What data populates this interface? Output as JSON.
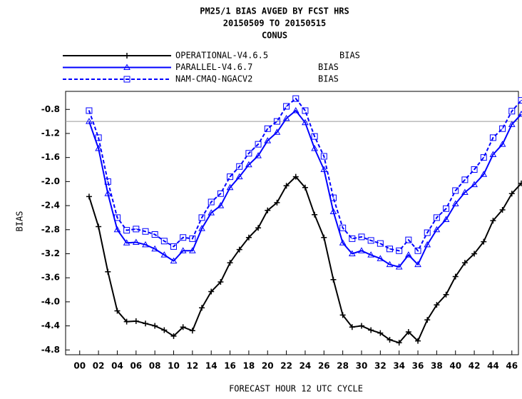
{
  "chart_data": {
    "type": "line",
    "title": [
      "PM25/1 BIAS  AVGED BY FCST HRS",
      "20150509 TO 20150515",
      "CONUS"
    ],
    "xlabel": "FORECAST HOUR  12 UTC CYCLE",
    "ylabel": "BIAS",
    "legend_stat": "BIAS",
    "x": [
      1,
      2,
      3,
      4,
      5,
      6,
      7,
      8,
      9,
      10,
      11,
      12,
      13,
      14,
      15,
      16,
      17,
      18,
      19,
      20,
      21,
      22,
      23,
      24,
      25,
      26,
      27,
      28,
      29,
      30,
      31,
      32,
      33,
      34,
      35,
      36,
      37,
      38,
      39,
      40,
      41,
      42,
      43,
      44,
      45,
      46,
      47
    ],
    "series": [
      {
        "name": "OPERATIONAL-V4.6.5",
        "color": "#000000",
        "marker": "plus",
        "dash": false,
        "values": [
          -2.25,
          -2.75,
          -3.5,
          -4.15,
          -4.33,
          -4.32,
          -4.36,
          -4.4,
          -4.47,
          -4.57,
          -4.42,
          -4.48,
          -4.1,
          -3.83,
          -3.67,
          -3.35,
          -3.13,
          -2.93,
          -2.77,
          -2.48,
          -2.35,
          -2.07,
          -1.92,
          -2.1,
          -2.55,
          -2.93,
          -3.63,
          -4.22,
          -4.42,
          -4.4,
          -4.47,
          -4.52,
          -4.63,
          -4.68,
          -4.5,
          -4.65,
          -4.3,
          -4.05,
          -3.88,
          -3.58,
          -3.35,
          -3.2,
          -3.0,
          -2.65,
          -2.47,
          -2.2,
          -2.03
        ]
      },
      {
        "name": "PARALLEL-V4.6.7",
        "color": "#0000ff",
        "marker": "triangle",
        "dash": false,
        "values": [
          -1.0,
          -1.45,
          -2.2,
          -2.8,
          -3.02,
          -3.01,
          -3.05,
          -3.12,
          -3.22,
          -3.32,
          -3.15,
          -3.15,
          -2.78,
          -2.52,
          -2.4,
          -2.1,
          -1.92,
          -1.72,
          -1.57,
          -1.32,
          -1.18,
          -0.95,
          -0.82,
          -1.02,
          -1.45,
          -1.8,
          -2.5,
          -3.02,
          -3.2,
          -3.15,
          -3.22,
          -3.28,
          -3.38,
          -3.42,
          -3.22,
          -3.38,
          -3.05,
          -2.8,
          -2.63,
          -2.37,
          -2.18,
          -2.05,
          -1.88,
          -1.55,
          -1.38,
          -1.05,
          -0.88
        ]
      },
      {
        "name": "NAM-CMAQ-NGACV2",
        "color": "#0000ff",
        "marker": "square",
        "dash": true,
        "values": [
          -0.82,
          -1.27,
          -2.0,
          -2.6,
          -2.81,
          -2.79,
          -2.83,
          -2.88,
          -2.99,
          -3.08,
          -2.93,
          -2.95,
          -2.6,
          -2.34,
          -2.2,
          -1.92,
          -1.75,
          -1.53,
          -1.38,
          -1.12,
          -1.0,
          -0.75,
          -0.62,
          -0.82,
          -1.25,
          -1.58,
          -2.27,
          -2.77,
          -2.95,
          -2.92,
          -2.98,
          -3.03,
          -3.12,
          -3.15,
          -2.97,
          -3.15,
          -2.85,
          -2.6,
          -2.45,
          -2.15,
          -1.97,
          -1.8,
          -1.6,
          -1.27,
          -1.12,
          -0.83,
          -0.65
        ]
      }
    ],
    "hline": -1.0,
    "xlim": [
      -1.5,
      46.7
    ],
    "ylim": [
      -4.88,
      -0.5
    ],
    "xticks": [
      {
        "value": 0,
        "label": "00"
      },
      {
        "value": 2,
        "label": "02"
      },
      {
        "value": 4,
        "label": "04"
      },
      {
        "value": 6,
        "label": "06"
      },
      {
        "value": 8,
        "label": "08"
      },
      {
        "value": 10,
        "label": "10"
      },
      {
        "value": 12,
        "label": "12"
      },
      {
        "value": 14,
        "label": "14"
      },
      {
        "value": 16,
        "label": "16"
      },
      {
        "value": 18,
        "label": "18"
      },
      {
        "value": 20,
        "label": "20"
      },
      {
        "value": 22,
        "label": "22"
      },
      {
        "value": 24,
        "label": "24"
      },
      {
        "value": 26,
        "label": "26"
      },
      {
        "value": 28,
        "label": "28"
      },
      {
        "value": 30,
        "label": "30"
      },
      {
        "value": 32,
        "label": "32"
      },
      {
        "value": 34,
        "label": "34"
      },
      {
        "value": 36,
        "label": "36"
      },
      {
        "value": 38,
        "label": "38"
      },
      {
        "value": 40,
        "label": "40"
      },
      {
        "value": 42,
        "label": "42"
      },
      {
        "value": 44,
        "label": "44"
      },
      {
        "value": 46,
        "label": "46"
      }
    ],
    "yticks": [
      -0.8,
      -1.2,
      -1.6,
      {
        "value": -2.0,
        "label": "-2.0"
      },
      -2.4,
      -2.8,
      -3.2,
      -3.6,
      {
        "value": -4.0,
        "label": "-4.0"
      },
      -4.4,
      -4.8
    ]
  }
}
